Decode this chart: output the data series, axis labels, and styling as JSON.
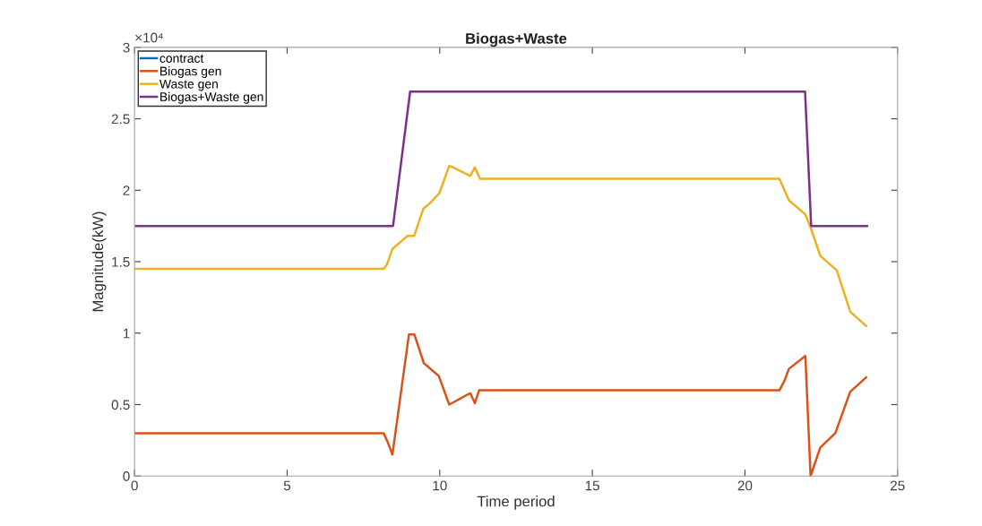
{
  "chart_data": {
    "type": "line",
    "title": "Biogas+Waste",
    "xlabel": "Time period",
    "ylabel": "Magnitude(kW)",
    "annotations": [
      "×10⁴"
    ],
    "xlim": [
      0,
      25
    ],
    "xticks": [
      0,
      5,
      10,
      15,
      20,
      25
    ],
    "ylim": [
      0,
      3
    ],
    "yticks": [
      0,
      0.5,
      1,
      1.5,
      2,
      2.5,
      3
    ],
    "grid": false,
    "legend": "top left",
    "line_style": "solid",
    "marker": "none",
    "series": [
      {
        "name": "contract",
        "color": "#0072bd"
      },
      {
        "name": "Biogas gen",
        "color": "#d95319",
        "x": [
          0,
          8.16,
          8.28,
          8.45,
          8.99,
          9.17,
          9.48,
          9.97,
          10.31,
          11.0,
          11.15,
          11.29,
          21.13,
          21.29,
          21.44,
          21.98,
          22.15,
          22.47,
          22.96,
          23.45,
          23.97
        ],
        "values": [
          0.3,
          0.3,
          0.245,
          0.15,
          0.99,
          0.99,
          0.79,
          0.7,
          0.5,
          0.58,
          0.51,
          0.6,
          0.6,
          0.665,
          0.75,
          0.84,
          0,
          0.2,
          0.3,
          0.59,
          0.69
        ]
      },
      {
        "name": "Waste gen",
        "color": "#edb120",
        "x": [
          0,
          8.16,
          8.27,
          8.45,
          8.94,
          9.16,
          9.46,
          9.68,
          9.99,
          10.31,
          10.44,
          11.0,
          11.15,
          11.32,
          21.13,
          21.44,
          21.98,
          22.15,
          22.47,
          23.01,
          23.45,
          23.97
        ],
        "values": [
          1.45,
          1.45,
          1.48,
          1.59,
          1.68,
          1.68,
          1.87,
          1.91,
          1.98,
          2.17,
          2.16,
          2.1,
          2.16,
          2.08,
          2.08,
          1.93,
          1.83,
          1.74,
          1.54,
          1.44,
          1.15,
          1.05
        ]
      },
      {
        "name": "Biogas+Waste gen",
        "color": "#7e2f8e",
        "x": [
          0,
          8.47,
          9.03,
          21.97,
          22.17,
          24
        ],
        "values": [
          1.75,
          1.75,
          2.69,
          2.69,
          1.75,
          1.75
        ]
      }
    ]
  }
}
